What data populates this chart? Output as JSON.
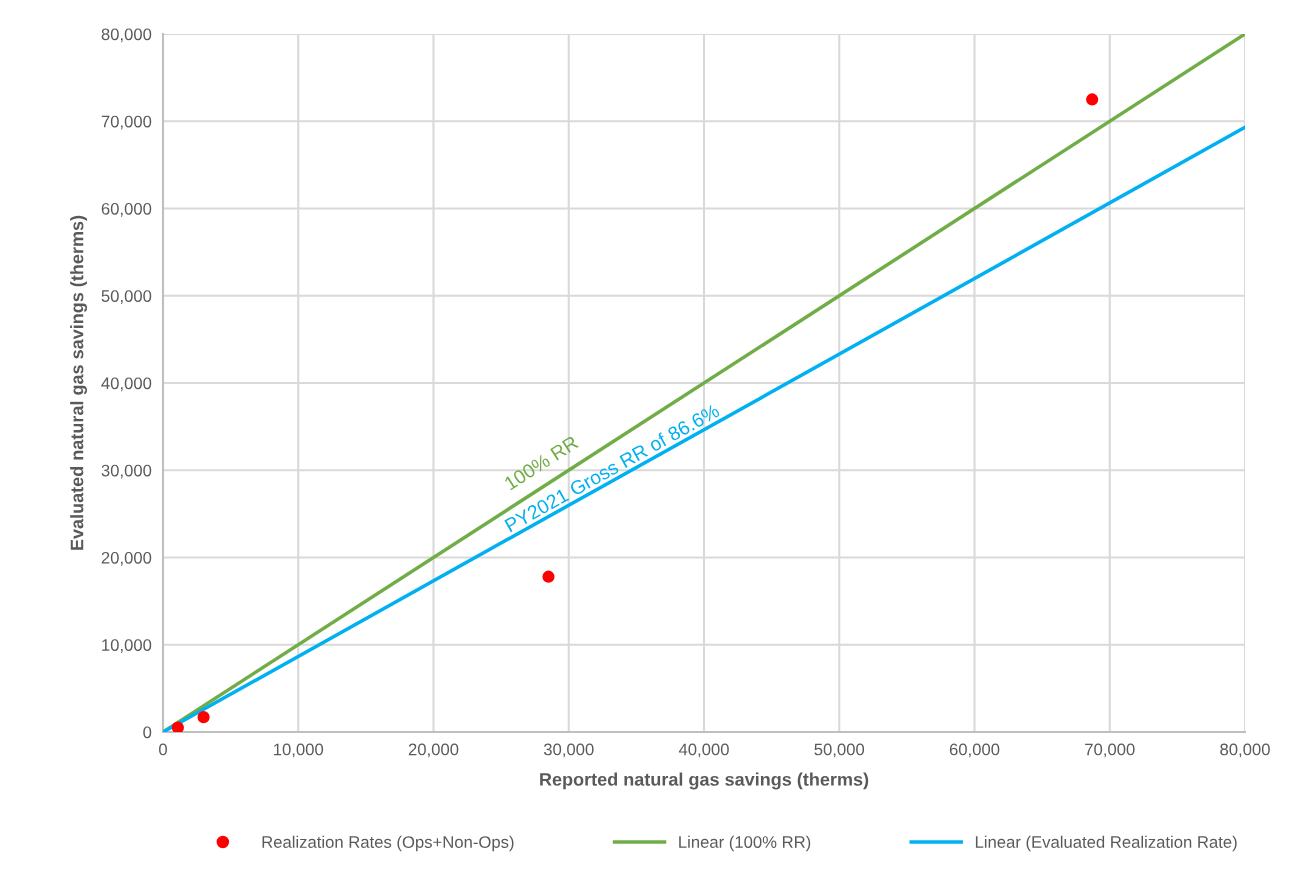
{
  "chart_data": {
    "type": "scatter",
    "xlabel": "Reported natural gas savings (therms)",
    "ylabel": "Evaluated natural gas savings (therms)",
    "series": [
      {
        "name": "Realization Rates (Ops+Non-Ops)",
        "color": "#ff0000",
        "x": [
          1100,
          3000,
          28500,
          68700
        ],
        "values": [
          500,
          1700,
          17800,
          72500
        ],
        "marker": "circle"
      },
      {
        "name": "Linear (100% RR)",
        "type": "line",
        "color": "#70ad47",
        "x": [
          0,
          80000
        ],
        "values": [
          0,
          80000
        ],
        "marker": "none"
      },
      {
        "name": "Linear (Evaluated Realization Rate)",
        "type": "line",
        "color": "#00b0f0",
        "x": [
          0,
          80000
        ],
        "values": [
          0,
          69300
        ],
        "marker": "none"
      }
    ],
    "annotations": [
      "100% RR",
      "PY2021 Gross RR of 86.6%"
    ],
    "xlim": [
      0,
      80000
    ],
    "ylim": [
      0,
      80000
    ],
    "xticks": [
      {
        "value": 0,
        "label": "0"
      },
      {
        "value": 10000,
        "label": "10,000"
      },
      {
        "value": 20000,
        "label": "20,000"
      },
      {
        "value": 30000,
        "label": "30,000"
      },
      {
        "value": 40000,
        "label": "40,000"
      },
      {
        "value": 50000,
        "label": "50,000"
      },
      {
        "value": 60000,
        "label": "60,000"
      },
      {
        "value": 70000,
        "label": "70,000"
      },
      {
        "value": 80000,
        "label": "80,000"
      }
    ],
    "yticks": [
      {
        "value": 0,
        "label": "0"
      },
      {
        "value": 10000,
        "label": "10,000"
      },
      {
        "value": 20000,
        "label": "20,000"
      },
      {
        "value": 30000,
        "label": "30,000"
      },
      {
        "value": 40000,
        "label": "40,000"
      },
      {
        "value": 50000,
        "label": "50,000"
      },
      {
        "value": 60000,
        "label": "60,000"
      },
      {
        "value": 70000,
        "label": "70,000"
      },
      {
        "value": 80000,
        "label": "80,000"
      }
    ],
    "grid": true,
    "legend": "bottom"
  }
}
